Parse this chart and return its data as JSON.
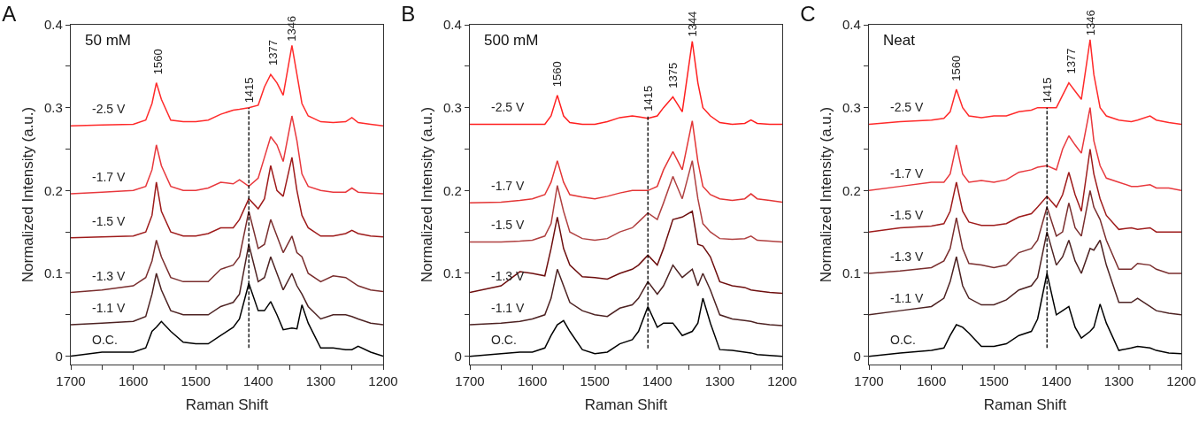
{
  "chart_data": [
    {
      "type": "line",
      "title": "A",
      "xlabel": "Raman Shift",
      "ylabel": "Normalized Intensity (a.u.)",
      "xlim": [
        1700,
        1200
      ],
      "xticks": [
        1700,
        {
          "value": 1650,
          "label": null
        },
        1600,
        {
          "value": 1550,
          "label": null
        },
        1500,
        {
          "value": 1450,
          "label": null
        },
        1400,
        {
          "value": 1350,
          "label": null
        },
        1300,
        {
          "value": 1250,
          "label": null
        },
        1200
      ],
      "ylim": [
        -0.01,
        0.4
      ],
      "yticks": [
        0,
        {
          "value": 0.05,
          "label": null
        },
        0.1,
        {
          "value": 0.15,
          "label": null
        },
        0.2,
        {
          "value": 0.25,
          "label": null
        },
        0.3,
        {
          "value": 0.35,
          "label": null
        },
        0.4
      ],
      "grid": false,
      "legend": false,
      "marker": "none",
      "line_style": "solid",
      "x": [
        1700,
        1650,
        1600,
        1580,
        1570,
        1563,
        1555,
        1540,
        1520,
        1500,
        1480,
        1460,
        1440,
        1430,
        1415,
        1400,
        1390,
        1380,
        1370,
        1360,
        1346,
        1338,
        1330,
        1320,
        1300,
        1280,
        1260,
        1250,
        1240,
        1220,
        1200
      ],
      "series": [
        {
          "name": "O.C.",
          "color": "#000000",
          "values": [
            0,
            0.005,
            0.005,
            0.01,
            0.03,
            0.035,
            0.042,
            0.03,
            0.017,
            0.015,
            0.015,
            0.025,
            0.035,
            0.045,
            0.088,
            0.055,
            0.055,
            0.066,
            0.05,
            0.032,
            0.034,
            0.033,
            0.062,
            0.04,
            0.01,
            0.01,
            0.008,
            0.008,
            0.012,
            0.005,
            0
          ]
        },
        {
          "name": "-1.1 V",
          "color": "#4d2222",
          "values": [
            0.038,
            0.04,
            0.042,
            0.048,
            0.075,
            0.1,
            0.08,
            0.055,
            0.05,
            0.05,
            0.05,
            0.06,
            0.065,
            0.075,
            0.135,
            0.09,
            0.095,
            0.12,
            0.1,
            0.08,
            0.1,
            0.085,
            0.075,
            0.06,
            0.045,
            0.05,
            0.05,
            0.048,
            0.045,
            0.04,
            0.038
          ]
        },
        {
          "name": "-1.3 V",
          "color": "#7a2e2e",
          "values": [
            0.077,
            0.08,
            0.085,
            0.095,
            0.115,
            0.14,
            0.12,
            0.095,
            0.09,
            0.09,
            0.09,
            0.105,
            0.11,
            0.12,
            0.175,
            0.13,
            0.135,
            0.165,
            0.145,
            0.125,
            0.145,
            0.125,
            0.12,
            0.1,
            0.09,
            0.097,
            0.095,
            0.09,
            0.085,
            0.08,
            0.078
          ]
        },
        {
          "name": "-1.5 V",
          "color": "#9e1b1b",
          "values": [
            0.143,
            0.144,
            0.145,
            0.15,
            0.17,
            0.21,
            0.175,
            0.15,
            0.145,
            0.145,
            0.148,
            0.155,
            0.155,
            0.165,
            0.19,
            0.178,
            0.19,
            0.23,
            0.2,
            0.193,
            0.24,
            0.2,
            0.17,
            0.155,
            0.145,
            0.145,
            0.148,
            0.152,
            0.148,
            0.145,
            0.144
          ]
        },
        {
          "name": "-1.7 V",
          "color": "#e8383d",
          "values": [
            0.196,
            0.198,
            0.2,
            0.205,
            0.225,
            0.255,
            0.23,
            0.205,
            0.2,
            0.2,
            0.203,
            0.21,
            0.208,
            0.213,
            0.205,
            0.215,
            0.24,
            0.265,
            0.255,
            0.235,
            0.29,
            0.26,
            0.22,
            0.205,
            0.2,
            0.198,
            0.198,
            0.203,
            0.198,
            0.197,
            0.196
          ]
        },
        {
          "name": "-2.5 V",
          "color": "#ff2a2a",
          "values": [
            0.278,
            0.279,
            0.28,
            0.285,
            0.305,
            0.33,
            0.31,
            0.285,
            0.283,
            0.283,
            0.285,
            0.292,
            0.297,
            0.298,
            0.3,
            0.303,
            0.325,
            0.34,
            0.33,
            0.315,
            0.375,
            0.34,
            0.305,
            0.29,
            0.283,
            0.282,
            0.283,
            0.288,
            0.282,
            0.28,
            0.278
          ]
        }
      ],
      "ref_lines": [
        {
          "axis": "x",
          "value": 1415,
          "color": "#000000",
          "line_style": "dashed"
        }
      ],
      "annotations": [
        "50 mM",
        {
          "text": "1560",
          "x": 1560,
          "y": 0.335
        },
        {
          "text": "1415",
          "x": 1415,
          "y": 0.3
        },
        {
          "text": "1377",
          "x": 1377,
          "y": 0.345
        },
        {
          "text": "1346",
          "x": 1346,
          "y": 0.375
        }
      ]
    },
    {
      "type": "line",
      "title": "B",
      "xlabel": "Raman Shift",
      "ylabel": "Normalized Intensity (a.u.)",
      "xlim": [
        1700,
        1200
      ],
      "xticks": [
        1700,
        {
          "value": 1650,
          "label": null
        },
        1600,
        {
          "value": 1550,
          "label": null
        },
        1500,
        {
          "value": 1450,
          "label": null
        },
        1400,
        {
          "value": 1350,
          "label": null
        },
        1300,
        {
          "value": 1250,
          "label": null
        },
        1200
      ],
      "ylim": [
        -0.01,
        0.4
      ],
      "yticks": [
        0,
        {
          "value": 0.05,
          "label": null
        },
        0.1,
        {
          "value": 0.15,
          "label": null
        },
        0.2,
        {
          "value": 0.25,
          "label": null
        },
        0.3,
        {
          "value": 0.35,
          "label": null
        },
        0.4
      ],
      "grid": false,
      "legend": false,
      "marker": "none",
      "line_style": "solid",
      "x": [
        1700,
        1650,
        1620,
        1600,
        1580,
        1570,
        1560,
        1550,
        1540,
        1520,
        1500,
        1480,
        1460,
        1440,
        1430,
        1415,
        1400,
        1390,
        1375,
        1360,
        1344,
        1335,
        1327,
        1315,
        1300,
        1280,
        1260,
        1250,
        1240,
        1220,
        1200
      ],
      "series": [
        {
          "name": "O.C.",
          "color": "#000000",
          "values": [
            0,
            0.003,
            0.005,
            0.005,
            0.01,
            0.025,
            0.038,
            0.043,
            0.03,
            0.008,
            0.003,
            0.005,
            0.015,
            0.02,
            0.03,
            0.06,
            0.035,
            0.04,
            0.04,
            0.025,
            0.03,
            0.04,
            0.07,
            0.04,
            0.008,
            0.007,
            0.005,
            0.004,
            0.002,
            0.001,
            0
          ]
        },
        {
          "name": "-1.1 V",
          "color": "#4d2222",
          "values": [
            0.038,
            0.04,
            0.042,
            0.045,
            0.05,
            0.07,
            0.105,
            0.085,
            0.065,
            0.055,
            0.05,
            0.048,
            0.058,
            0.062,
            0.07,
            0.09,
            0.075,
            0.085,
            0.11,
            0.095,
            0.105,
            0.085,
            0.1,
            0.08,
            0.05,
            0.045,
            0.043,
            0.042,
            0.04,
            0.038,
            0.037
          ]
        },
        {
          "name": "-1.3 V",
          "color": "#6e0f0f",
          "values": [
            0.077,
            0.085,
            0.102,
            0.1,
            0.097,
            0.13,
            0.168,
            0.13,
            0.11,
            0.096,
            0.095,
            0.093,
            0.1,
            0.105,
            0.11,
            0.122,
            0.11,
            0.13,
            0.165,
            0.168,
            0.175,
            0.135,
            0.133,
            0.12,
            0.09,
            0.085,
            0.083,
            0.08,
            0.079,
            0.077,
            0.076
          ]
        },
        {
          "name": "-1.5 V",
          "color": "#b04040",
          "values": [
            0.138,
            0.138,
            0.139,
            0.14,
            0.145,
            0.16,
            0.206,
            0.175,
            0.15,
            0.142,
            0.14,
            0.142,
            0.15,
            0.155,
            0.162,
            0.173,
            0.165,
            0.185,
            0.217,
            0.19,
            0.236,
            0.19,
            0.16,
            0.15,
            0.142,
            0.141,
            0.142,
            0.145,
            0.14,
            0.139,
            0.138
          ]
        },
        {
          "name": "-1.7 V",
          "color": "#e33535",
          "values": [
            0.185,
            0.186,
            0.188,
            0.19,
            0.195,
            0.21,
            0.236,
            0.21,
            0.195,
            0.192,
            0.19,
            0.193,
            0.197,
            0.2,
            0.2,
            0.2,
            0.205,
            0.225,
            0.247,
            0.225,
            0.284,
            0.235,
            0.205,
            0.195,
            0.19,
            0.188,
            0.19,
            0.196,
            0.19,
            0.188,
            0.186
          ]
        },
        {
          "name": "-2.5 V",
          "color": "#ff1f1f",
          "values": [
            0.28,
            0.28,
            0.28,
            0.28,
            0.28,
            0.29,
            0.315,
            0.29,
            0.282,
            0.28,
            0.28,
            0.283,
            0.288,
            0.29,
            0.289,
            0.287,
            0.29,
            0.3,
            0.313,
            0.295,
            0.38,
            0.33,
            0.3,
            0.29,
            0.282,
            0.28,
            0.281,
            0.285,
            0.281,
            0.28,
            0.28
          ]
        }
      ],
      "ref_lines": [
        {
          "axis": "x",
          "value": 1415,
          "color": "#000000",
          "line_style": "dashed"
        }
      ],
      "annotations": [
        "500 mM",
        {
          "text": "1560",
          "x": 1560,
          "y": 0.32
        },
        {
          "text": "1415",
          "x": 1415,
          "y": 0.29
        },
        {
          "text": "1375",
          "x": 1375,
          "y": 0.318
        },
        {
          "text": "1344",
          "x": 1344,
          "y": 0.38
        }
      ]
    },
    {
      "type": "line",
      "title": "C",
      "xlabel": "Raman Shift",
      "ylabel": "Normalized Intensity (a.u.)",
      "xlim": [
        1700,
        1200
      ],
      "xticks": [
        1700,
        {
          "value": 1650,
          "label": null
        },
        1600,
        {
          "value": 1550,
          "label": null
        },
        1500,
        {
          "value": 1450,
          "label": null
        },
        1400,
        {
          "value": 1350,
          "label": null
        },
        1300,
        {
          "value": 1250,
          "label": null
        },
        1200
      ],
      "ylim": [
        -0.01,
        0.4
      ],
      "yticks": [
        0,
        {
          "value": 0.05,
          "label": null
        },
        0.1,
        {
          "value": 0.15,
          "label": null
        },
        0.2,
        {
          "value": 0.25,
          "label": null
        },
        0.3,
        {
          "value": 0.35,
          "label": null
        },
        0.4
      ],
      "grid": false,
      "legend": false,
      "marker": "none",
      "line_style": "solid",
      "x": [
        1700,
        1650,
        1600,
        1580,
        1570,
        1560,
        1550,
        1540,
        1520,
        1500,
        1480,
        1460,
        1440,
        1430,
        1415,
        1400,
        1390,
        1380,
        1370,
        1360,
        1346,
        1340,
        1330,
        1320,
        1300,
        1280,
        1270,
        1250,
        1240,
        1220,
        1200
      ],
      "series": [
        {
          "name": "O.C.",
          "color": "#000000",
          "values": [
            0,
            0.004,
            0.007,
            0.01,
            0.025,
            0.038,
            0.035,
            0.028,
            0.012,
            0.012,
            0.015,
            0.025,
            0.03,
            0.045,
            0.1,
            0.05,
            0.055,
            0.06,
            0.035,
            0.022,
            0.03,
            0.035,
            0.063,
            0.04,
            0.007,
            0.01,
            0.012,
            0.01,
            0.007,
            0.004,
            0.003
          ]
        },
        {
          "name": "-1.1 V",
          "color": "#4d2222",
          "values": [
            0.05,
            0.055,
            0.06,
            0.07,
            0.09,
            0.12,
            0.085,
            0.07,
            0.062,
            0.062,
            0.068,
            0.08,
            0.085,
            0.095,
            0.15,
            0.11,
            0.12,
            0.14,
            0.115,
            0.1,
            0.13,
            0.128,
            0.14,
            0.11,
            0.065,
            0.065,
            0.07,
            0.06,
            0.055,
            0.052,
            0.05
          ]
        },
        {
          "name": "-1.3 V",
          "color": "#7a2e2e",
          "values": [
            0.1,
            0.103,
            0.107,
            0.115,
            0.13,
            0.167,
            0.13,
            0.112,
            0.11,
            0.107,
            0.11,
            0.125,
            0.13,
            0.14,
            0.18,
            0.145,
            0.15,
            0.185,
            0.155,
            0.145,
            0.2,
            0.18,
            0.165,
            0.14,
            0.105,
            0.105,
            0.112,
            0.11,
            0.105,
            0.1,
            0.1
          ]
        },
        {
          "name": "-1.5 V",
          "color": "#9e1b1b",
          "values": [
            0.15,
            0.155,
            0.157,
            0.16,
            0.175,
            0.21,
            0.175,
            0.162,
            0.158,
            0.158,
            0.16,
            0.168,
            0.172,
            0.18,
            0.193,
            0.18,
            0.195,
            0.222,
            0.195,
            0.175,
            0.25,
            0.22,
            0.19,
            0.17,
            0.153,
            0.155,
            0.153,
            0.155,
            0.15,
            0.15,
            0.15
          ]
        },
        {
          "name": "-1.7 V",
          "color": "#e8383d",
          "values": [
            0.2,
            0.205,
            0.21,
            0.21,
            0.22,
            0.255,
            0.22,
            0.21,
            0.212,
            0.21,
            0.213,
            0.222,
            0.225,
            0.228,
            0.23,
            0.225,
            0.25,
            0.266,
            0.255,
            0.245,
            0.3,
            0.26,
            0.23,
            0.215,
            0.21,
            0.205,
            0.205,
            0.207,
            0.203,
            0.203,
            0.2
          ]
        },
        {
          "name": "-2.5 V",
          "color": "#ff2a2a",
          "values": [
            0.28,
            0.283,
            0.285,
            0.287,
            0.295,
            0.322,
            0.3,
            0.29,
            0.288,
            0.29,
            0.29,
            0.295,
            0.297,
            0.3,
            0.3,
            0.3,
            0.315,
            0.33,
            0.32,
            0.31,
            0.382,
            0.34,
            0.3,
            0.29,
            0.285,
            0.283,
            0.285,
            0.29,
            0.285,
            0.282,
            0.28
          ]
        }
      ],
      "ref_lines": [
        {
          "axis": "x",
          "value": 1415,
          "color": "#000000",
          "line_style": "dashed"
        }
      ],
      "annotations": [
        "Neat",
        {
          "text": "1560",
          "x": 1560,
          "y": 0.327
        },
        {
          "text": "1415",
          "x": 1415,
          "y": 0.3
        },
        {
          "text": "1377",
          "x": 1377,
          "y": 0.335
        },
        {
          "text": "1346",
          "x": 1346,
          "y": 0.382
        }
      ]
    }
  ]
}
